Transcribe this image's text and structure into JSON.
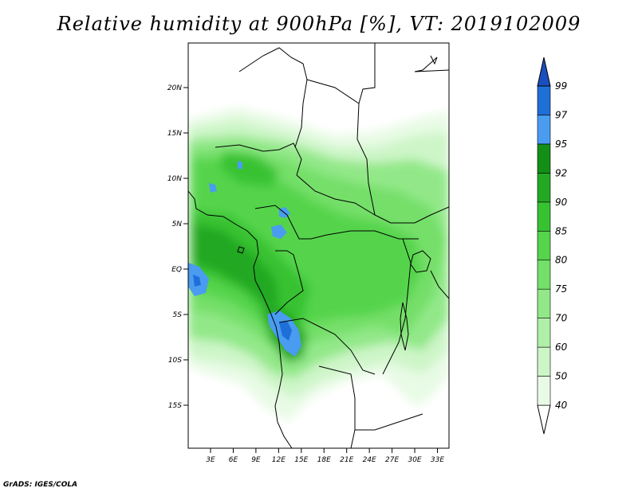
{
  "title": "Relative humidity at 900hPa [%], VT: 2019102009",
  "credit": "GrADS: IGES/COLA",
  "map": {
    "lon_range": [
      0,
      34.5
    ],
    "lat_range": [
      -19.5,
      24.5
    ],
    "lat_ticks": [
      "20N",
      "15N",
      "10N",
      "5N",
      "EQ",
      "5S",
      "10S",
      "15S"
    ],
    "lon_ticks": [
      "3E",
      "6E",
      "9E",
      "12E",
      "15E",
      "18E",
      "21E",
      "24E",
      "27E",
      "30E",
      "33E"
    ]
  },
  "colorbar": {
    "levels": [
      "40",
      "50",
      "60",
      "70",
      "75",
      "80",
      "85",
      "90",
      "92",
      "95",
      "97",
      "99"
    ],
    "colors": [
      "#ffffff",
      "#e8fbe5",
      "#cdf5c8",
      "#b0efa8",
      "#92e888",
      "#74df69",
      "#55d44c",
      "#37c232",
      "#23a823",
      "#138e16",
      "#4a9cf0",
      "#1f6fd8",
      "#1a4fc0"
    ]
  }
}
